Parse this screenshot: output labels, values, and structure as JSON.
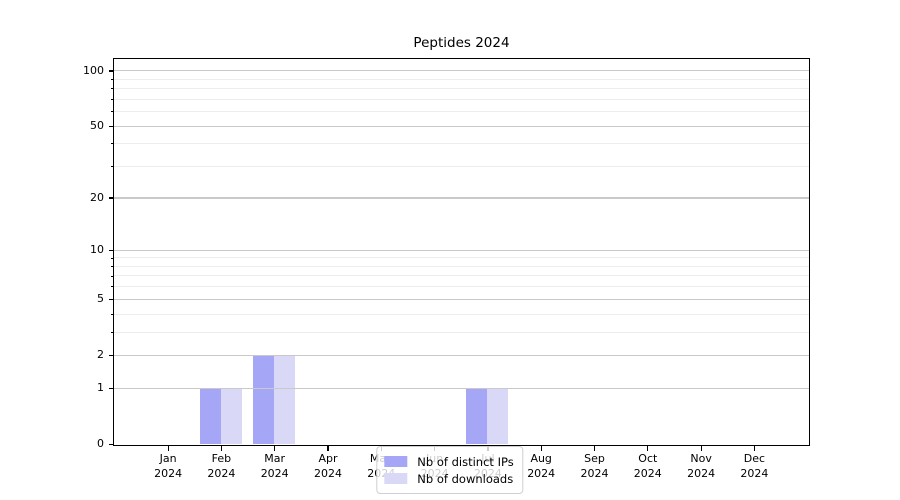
{
  "chart_data": {
    "type": "bar",
    "title": "Peptides 2024",
    "categories": [
      "Jan",
      "Feb",
      "Mar",
      "Apr",
      "May",
      "Jun",
      "Jul",
      "Aug",
      "Sep",
      "Oct",
      "Nov",
      "Dec"
    ],
    "category_year": "2024",
    "series": [
      {
        "name": "Nb of distinct IPs",
        "color": "#a6a6f7",
        "values": [
          0,
          1,
          2,
          0,
          0,
          0,
          1,
          0,
          0,
          0,
          0,
          0
        ]
      },
      {
        "name": "Nb of downloads",
        "color": "#d9d9f7",
        "values": [
          0,
          1,
          2,
          0,
          0,
          0,
          1,
          0,
          0,
          0,
          0,
          0
        ]
      }
    ],
    "xlabel": "",
    "ylabel": "",
    "yscale": "log1p",
    "ylim": [
      0,
      115
    ],
    "yticks": [
      0,
      1,
      2,
      5,
      10,
      20,
      50,
      100
    ],
    "minor_yticks": [
      3,
      4,
      6,
      7,
      8,
      9,
      30,
      40,
      60,
      70,
      80,
      90
    ],
    "grid": true,
    "legend_position": "lower center",
    "colors": {
      "major_grid": "#c9c9c9",
      "minor_grid": "#ededed",
      "spine": "#000000",
      "text": "#000000",
      "background": "#ffffff"
    }
  }
}
